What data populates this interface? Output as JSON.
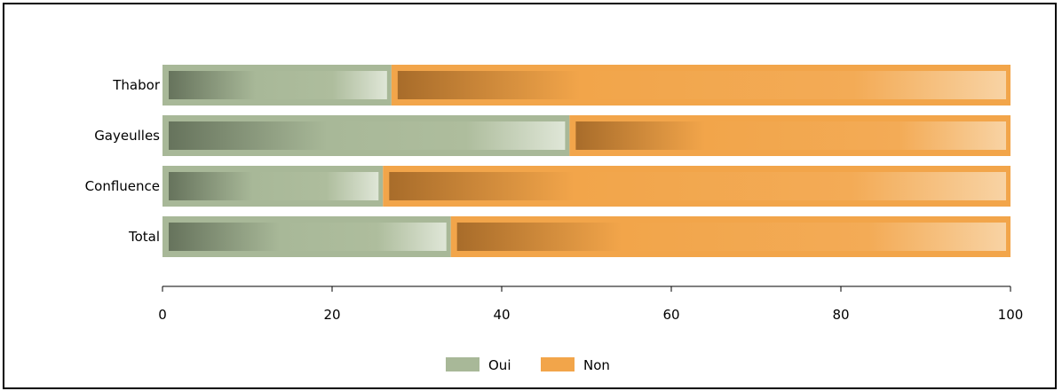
{
  "chart_data": {
    "type": "bar",
    "orientation": "horizontal",
    "stacked": true,
    "categories": [
      "Thabor",
      "Gayeulles",
      "Confluence",
      "Total"
    ],
    "series": [
      {
        "name": "Oui",
        "values": [
          27,
          48,
          26,
          34
        ],
        "color": "#a8b898"
      },
      {
        "name": "Non",
        "values": [
          73,
          52,
          74,
          66
        ],
        "color": "#f2a54a"
      }
    ],
    "title": "",
    "xlabel": "",
    "ylabel": "",
    "xlim": [
      0,
      100
    ],
    "xticks": [
      "0",
      "20",
      "40",
      "60",
      "80",
      "100"
    ],
    "grid": false,
    "legend_position": "bottom-center"
  }
}
